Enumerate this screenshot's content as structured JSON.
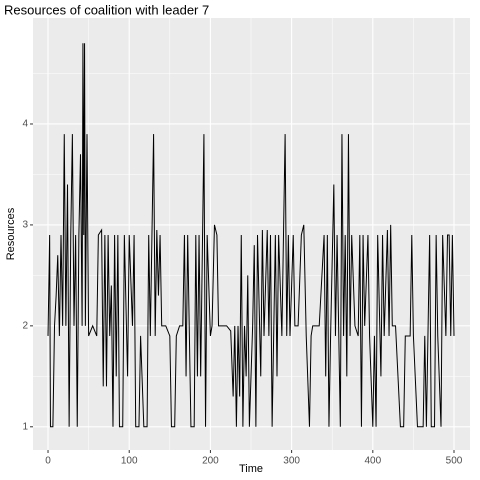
{
  "chart_data": {
    "type": "line",
    "title": "Resources of coalition with leader 7",
    "x_label": "Time",
    "y_label": "Resources",
    "color": "#000000",
    "panel_color": "#ebebeb",
    "grid": true,
    "xlim": [
      -18.5,
      519.7
    ],
    "ylim": [
      0.77,
      5.05
    ],
    "xticks": [
      0,
      100,
      200,
      300,
      400,
      500
    ],
    "yticks": [
      1,
      2,
      3,
      4
    ],
    "xminor": [
      50,
      150,
      250,
      350,
      450
    ],
    "yminor": [
      1.5,
      2.5,
      3.5,
      4.5
    ],
    "x": [
      0,
      2,
      3,
      6,
      8,
      10,
      12,
      14,
      16,
      18,
      20,
      22,
      24,
      26,
      28,
      30,
      32,
      34,
      36,
      38,
      40,
      42,
      43,
      44,
      45,
      46,
      48,
      50,
      55,
      60,
      62,
      66,
      68,
      70,
      72,
      74,
      76,
      78,
      80,
      82,
      84,
      86,
      88,
      92,
      94,
      98,
      100,
      104,
      106,
      108,
      112,
      114,
      118,
      122,
      124,
      126,
      128,
      130,
      132,
      134,
      136,
      138,
      140,
      145,
      150,
      152,
      156,
      158,
      162,
      166,
      168,
      170,
      172,
      176,
      180,
      182,
      184,
      186,
      188,
      192,
      194,
      196,
      200,
      202,
      205,
      208,
      210,
      220,
      225,
      228,
      230,
      232,
      234,
      236,
      238,
      240,
      242,
      244,
      246,
      248,
      252,
      254,
      256,
      258,
      262,
      264,
      266,
      270,
      272,
      274,
      276,
      280,
      282,
      284,
      288,
      292,
      294,
      296,
      298,
      302,
      304,
      308,
      312,
      315,
      318,
      322,
      324,
      326,
      334,
      340,
      342,
      344,
      346,
      348,
      352,
      354,
      356,
      360,
      362,
      364,
      366,
      368,
      370,
      372,
      374,
      378,
      382,
      384,
      386,
      388,
      390,
      394,
      396,
      400,
      402,
      404,
      406,
      410,
      412,
      414,
      418,
      420,
      422,
      424,
      428,
      434,
      438,
      440,
      446,
      448,
      450,
      455,
      462,
      464,
      466,
      470,
      472,
      476,
      478,
      480,
      484,
      486,
      490,
      492,
      494,
      496,
      498,
      500
    ],
    "values": [
      1.9,
      2.9,
      1.0,
      1.0,
      2.0,
      2.3,
      2.7,
      1.9,
      2.9,
      2.0,
      3.9,
      2.0,
      3.4,
      1.0,
      2.9,
      3.9,
      2.0,
      2.9,
      1.0,
      2.9,
      3.7,
      2.0,
      4.8,
      2.9,
      4.8,
      2.0,
      3.9,
      1.9,
      2.0,
      1.9,
      2.9,
      2.95,
      1.4,
      2.9,
      1.4,
      2.9,
      1.9,
      2.4,
      1.0,
      2.9,
      1.5,
      2.9,
      1.0,
      1.0,
      2.9,
      1.5,
      2.9,
      2.0,
      2.9,
      1.0,
      1.0,
      1.9,
      1.0,
      1.0,
      2.9,
      1.9,
      2.9,
      3.9,
      1.9,
      2.95,
      2.3,
      2.9,
      2.0,
      2.0,
      1.9,
      1.0,
      1.0,
      1.9,
      2.0,
      2.0,
      2.9,
      1.5,
      2.9,
      1.0,
      1.0,
      2.9,
      1.5,
      2.9,
      1.5,
      3.9,
      1.0,
      2.9,
      1.9,
      2.0,
      3.0,
      2.9,
      2.0,
      2.0,
      1.95,
      1.3,
      2.0,
      1.0,
      2.0,
      1.3,
      2.9,
      1.0,
      2.0,
      1.5,
      2.5,
      1.0,
      2.0,
      2.8,
      1.0,
      2.9,
      1.5,
      2.95,
      1.9,
      2.95,
      1.9,
      2.9,
      1.0,
      2.9,
      1.5,
      2.9,
      1.9,
      3.9,
      1.9,
      2.9,
      1.9,
      2.9,
      2.0,
      2.0,
      2.9,
      3.0,
      1.9,
      1.0,
      1.9,
      2.0,
      2.0,
      2.9,
      1.5,
      2.9,
      1.0,
      1.9,
      3.4,
      1.9,
      2.9,
      1.0,
      3.9,
      1.9,
      2.9,
      1.5,
      3.9,
      1.9,
      2.9,
      2.0,
      1.9,
      2.9,
      1.0,
      2.9,
      2.0,
      2.9,
      1.9,
      1.0,
      1.9,
      1.0,
      2.9,
      1.5,
      2.9,
      1.9,
      2.95,
      1.9,
      3.0,
      2.0,
      2.0,
      1.0,
      1.0,
      1.9,
      1.9,
      2.9,
      1.9,
      1.0,
      1.0,
      1.9,
      1.0,
      2.9,
      1.0,
      1.0,
      2.9,
      1.9,
      1.0,
      2.9,
      1.9,
      2.9,
      2.9,
      1.9,
      2.9,
      1.9
    ]
  }
}
